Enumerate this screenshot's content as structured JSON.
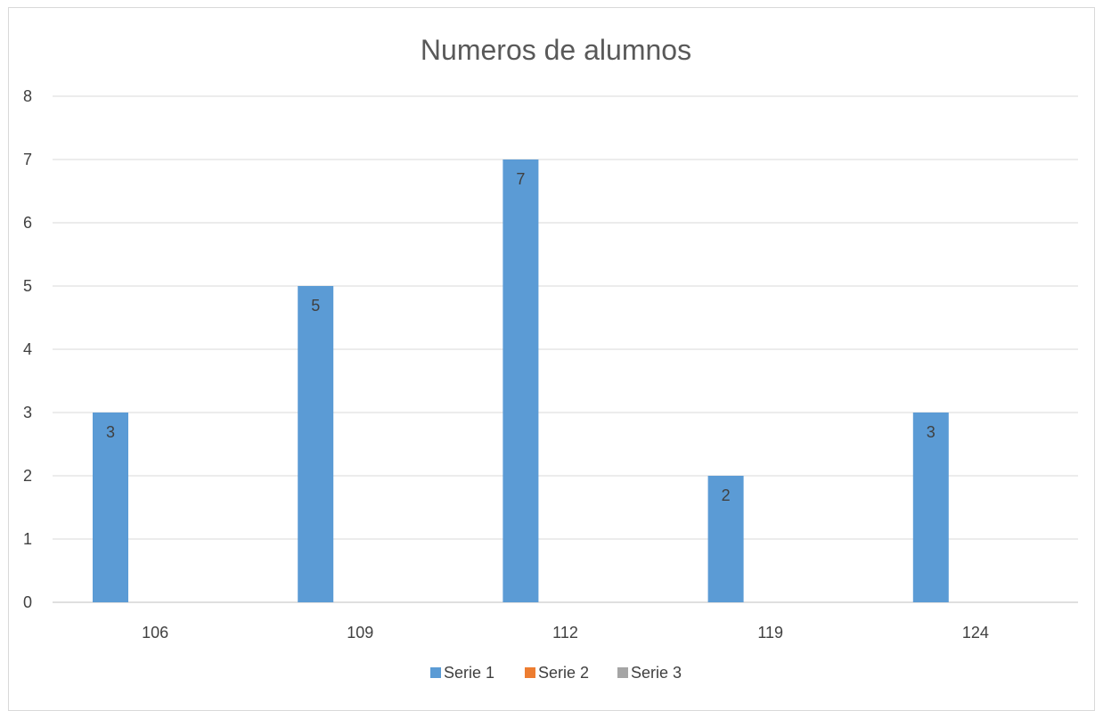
{
  "chart_data": {
    "type": "bar",
    "title": "Numeros de alumnos",
    "xlabel": "",
    "ylabel": "",
    "categories": [
      "106",
      "109",
      "112",
      "119",
      "124"
    ],
    "ylim": [
      0,
      8
    ],
    "yticks": [
      "0",
      "1",
      "2",
      "3",
      "4",
      "5",
      "6",
      "7",
      "8"
    ],
    "grid": true,
    "legend_position": "bottom",
    "series": [
      {
        "name": "Serie 1",
        "color": "#5B9BD5",
        "values": [
          3,
          5,
          7,
          2,
          3
        ],
        "data_labels": [
          "3",
          "5",
          "7",
          "2",
          "3"
        ]
      },
      {
        "name": "Serie 2",
        "color": "#ED7D31",
        "values": [
          null,
          null,
          null,
          null,
          null
        ]
      },
      {
        "name": "Serie 3",
        "color": "#A5A5A5",
        "values": [
          null,
          null,
          null,
          null,
          null
        ]
      }
    ]
  }
}
